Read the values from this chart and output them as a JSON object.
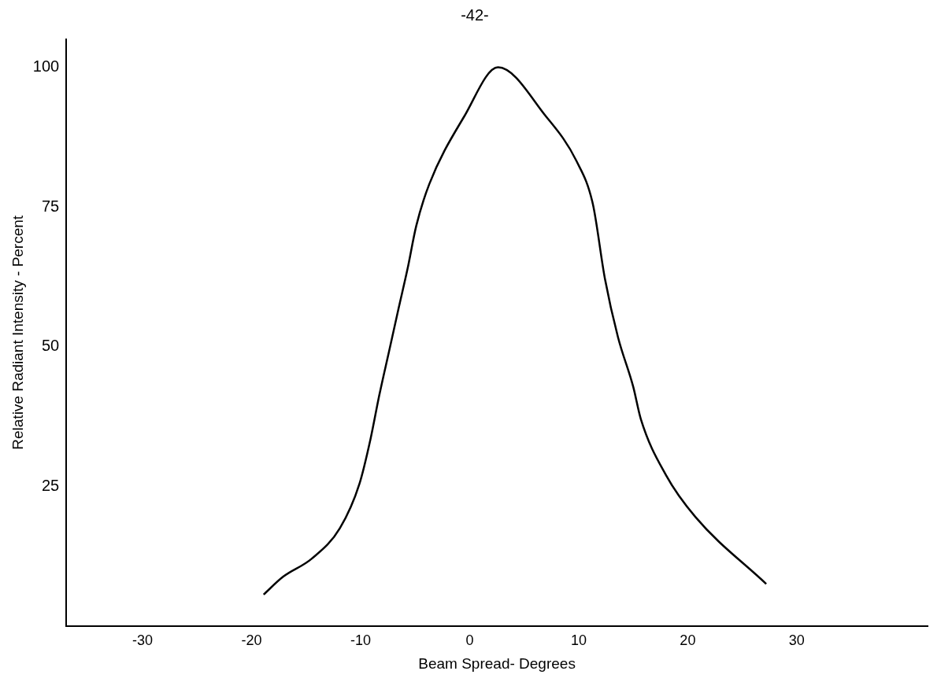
{
  "chart_data": {
    "type": "line",
    "xlabel": "Beam Spread- Degrees",
    "ylabel": "Relative Radiant Intensity - Percent",
    "annotations": [
      "-42-"
    ],
    "x": [
      -18.9,
      -17.1,
      -14.5,
      -11.9,
      -10.1,
      -9.1,
      -8.3,
      -7.4,
      -6.5,
      -5.7,
      -4.9,
      -3.7,
      -0.5,
      2.6,
      7.0,
      9.8,
      11.3,
      12.4,
      13.6,
      15.0,
      15.7,
      18,
      20.7,
      27.2
    ],
    "series": [
      {
        "color": "#000000",
        "values": [
          5.6,
          8.8,
          12,
          17.5,
          25.5,
          33.4,
          41.2,
          49.1,
          57,
          63.9,
          71.6,
          79.1,
          91.2,
          100,
          91.2,
          83.2,
          75.5,
          62.2,
          51.7,
          42.8,
          37,
          27,
          19.5,
          7.5
        ]
      }
    ],
    "xlim": [
      -37,
      42
    ],
    "xticks": [
      -30,
      -20,
      -10,
      0,
      10,
      20,
      30
    ],
    "ylim": [
      0,
      105
    ],
    "yticks": [
      25,
      50,
      75,
      100
    ],
    "grid": false,
    "legend": false,
    "marker": "none",
    "line_style": "solid"
  }
}
